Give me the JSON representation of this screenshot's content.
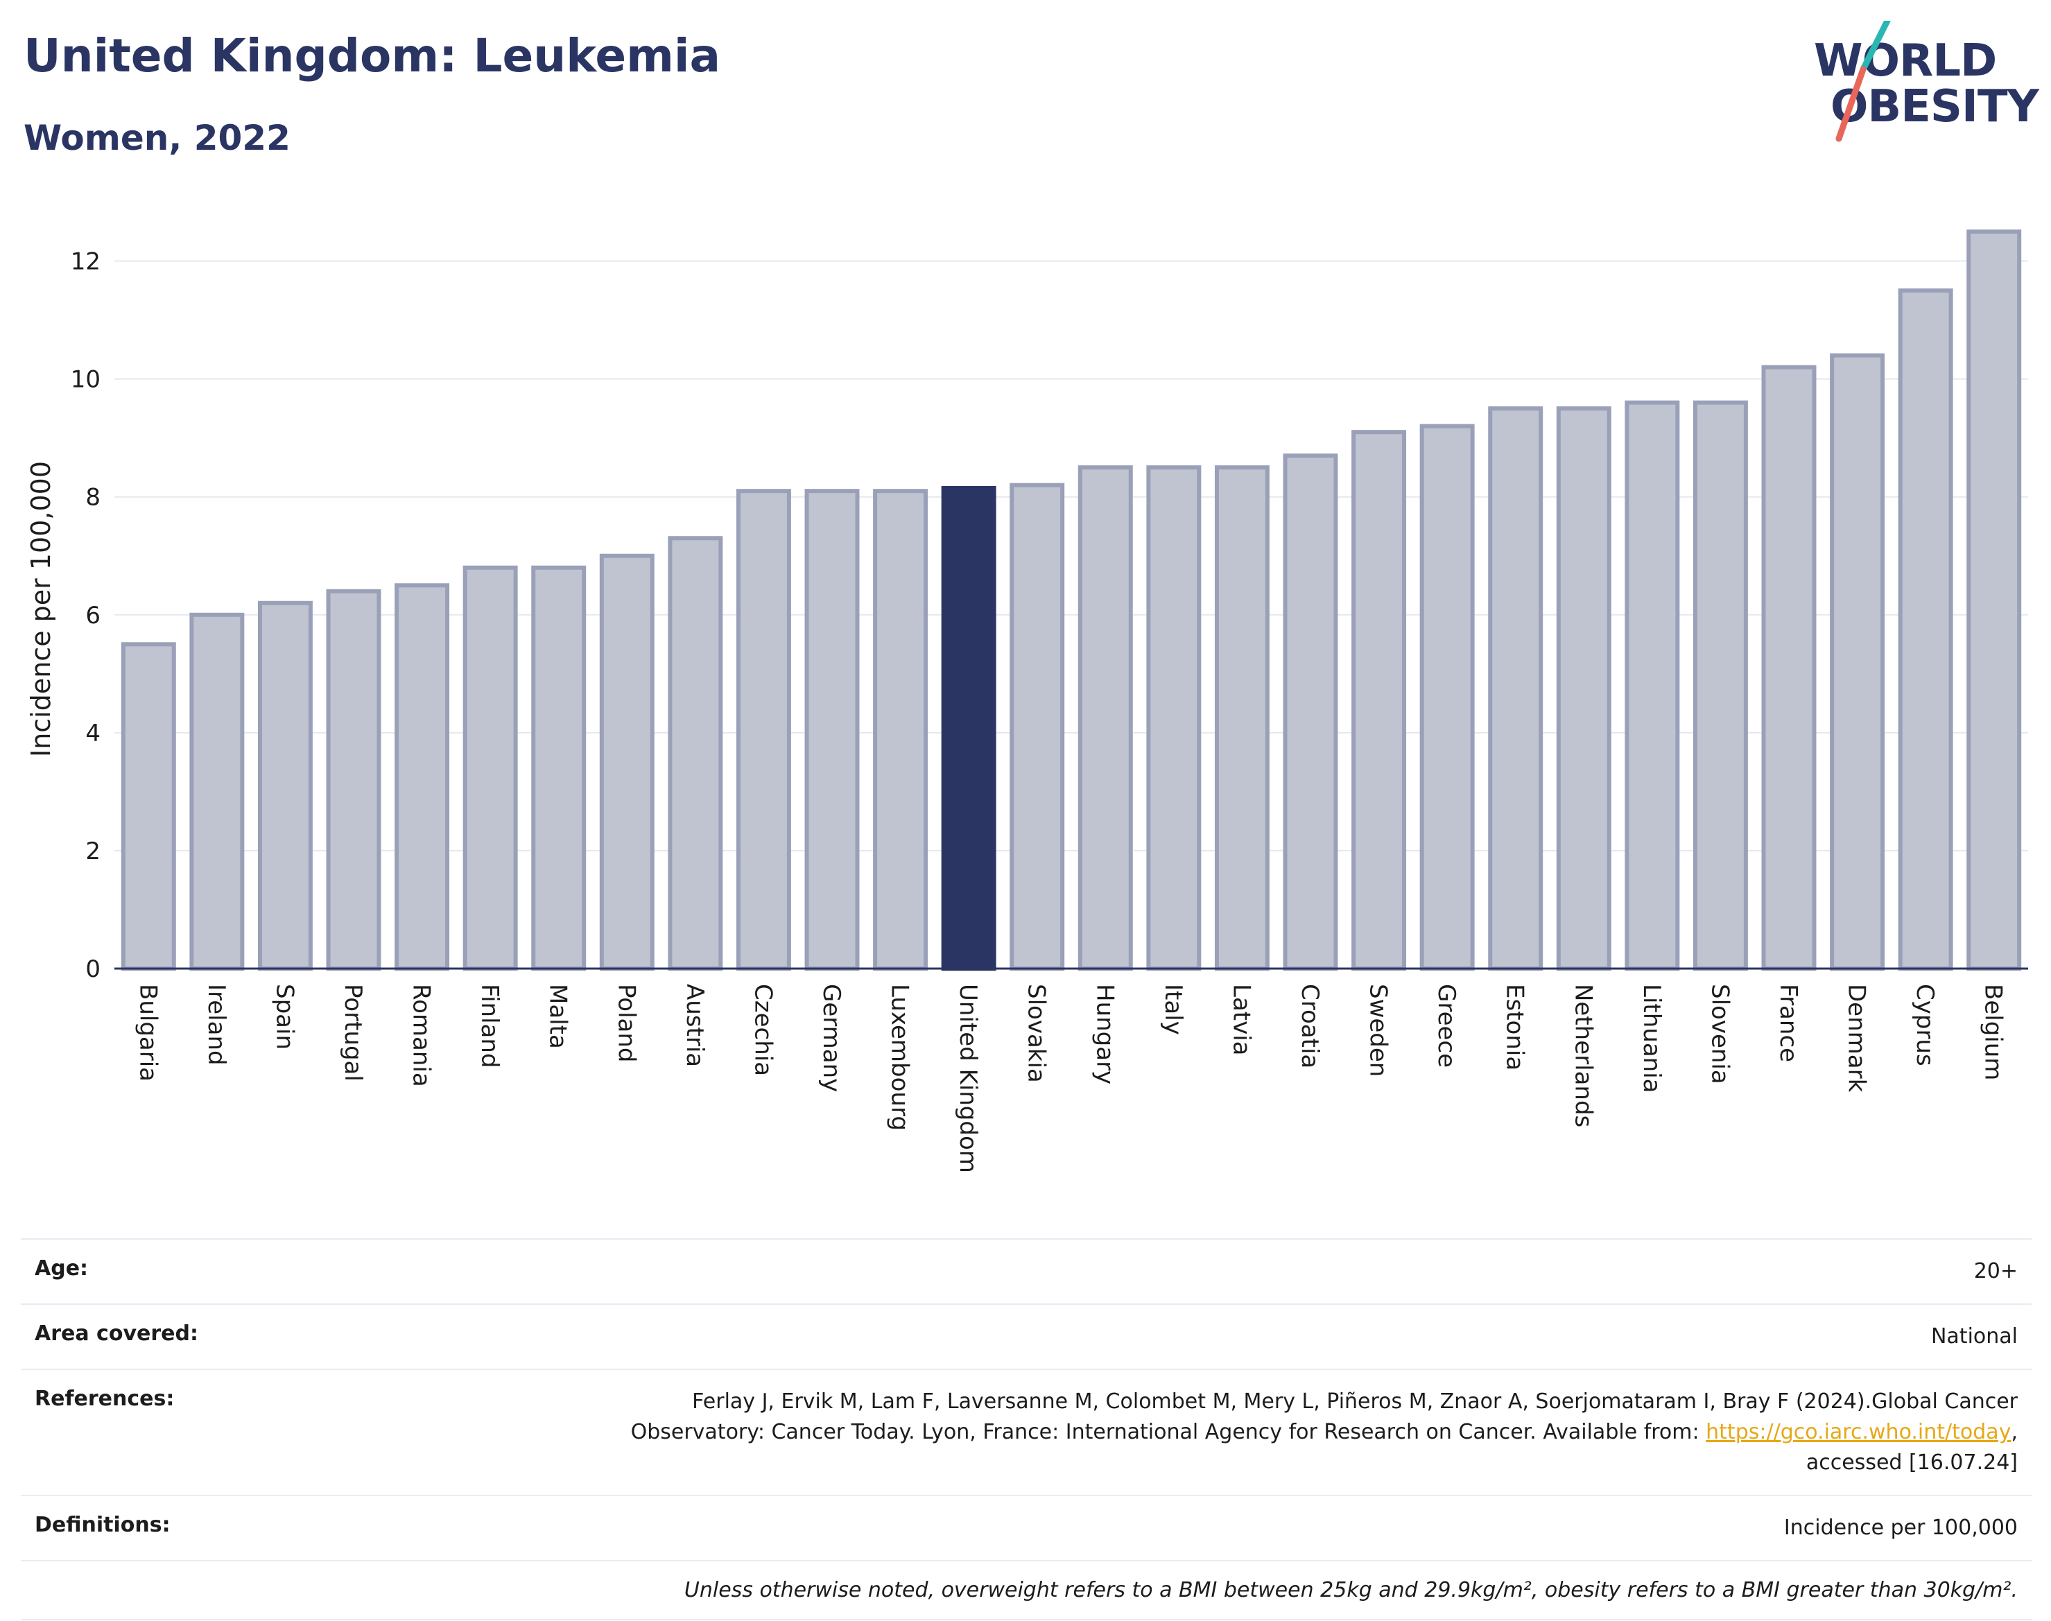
{
  "header": {
    "title": "United Kingdom: Leukemia",
    "subtitle": "Women, 2022",
    "logo_line_1": "WORLD",
    "logo_line_2": "OBESITY"
  },
  "colors": {
    "highlight_bar": "#2b3563",
    "bar": "#c0c4d0",
    "bar_outline": "#9aa0b8",
    "title": "#2b3563",
    "logo_teal": "#2ab7b2",
    "logo_coral": "#e8665a",
    "link": "#e6a817"
  },
  "chart_data": {
    "type": "bar",
    "ylabel": "Incidence per 100,000",
    "xlabel": "",
    "ylim": [
      0,
      12.9
    ],
    "yticks": [
      0,
      2,
      4,
      6,
      8,
      10,
      12
    ],
    "grid": true,
    "highlight": "United Kingdom",
    "categories": [
      "Bulgaria",
      "Ireland",
      "Spain",
      "Portugal",
      "Romania",
      "Finland",
      "Malta",
      "Poland",
      "Austria",
      "Czechia",
      "Germany",
      "Luxembourg",
      "United Kingdom",
      "Slovakia",
      "Hungary",
      "Italy",
      "Latvia",
      "Croatia",
      "Sweden",
      "Greece",
      "Estonia",
      "Netherlands",
      "Lithuania",
      "Slovenia",
      "France",
      "Denmark",
      "Cyprus",
      "Belgium"
    ],
    "values": [
      5.5,
      6.0,
      6.2,
      6.4,
      6.5,
      6.8,
      6.8,
      7.0,
      7.3,
      8.1,
      8.1,
      8.1,
      8.15,
      8.2,
      8.5,
      8.5,
      8.5,
      8.7,
      9.1,
      9.2,
      9.5,
      9.5,
      9.6,
      9.6,
      10.2,
      10.4,
      11.5,
      12.5
    ]
  },
  "meta": {
    "age_label": "Age:",
    "age_value": "20+",
    "area_label": "Area covered:",
    "area_value": "National",
    "references_label": "References:",
    "references_line_1": "Ferlay J, Ervik M, Lam F, Laversanne M, Colombet M, Mery L, Piñeros M, Znaor A, Soerjomataram I, Bray F (2024).Global Cancer",
    "references_line_2_prefix": "Observatory: Cancer Today. Lyon, France: International Agency for Research on Cancer. Available from: ",
    "references_link": "https://gco.iarc.who.int/today",
    "references_line_2_suffix": ",",
    "references_line_3": "accessed [16.07.24]",
    "definitions_label": "Definitions:",
    "definitions_value": "Incidence per 100,000",
    "footnote": "Unless otherwise noted, overweight refers to a BMI between 25kg and 29.9kg/m², obesity refers to a BMI greater than 30kg/m²."
  }
}
